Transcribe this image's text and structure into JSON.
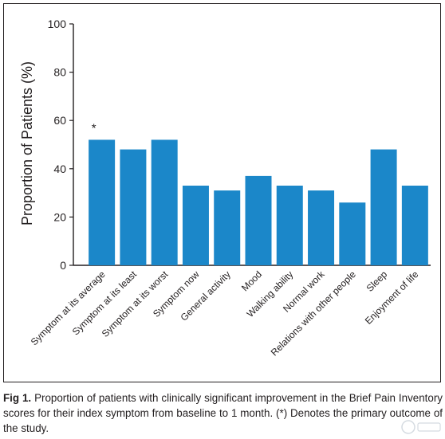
{
  "chart_data": {
    "type": "bar",
    "title": "",
    "ylabel": "Proportion of Patients (%)",
    "xlabel": "",
    "ylim": [
      0,
      100
    ],
    "yticks": [
      0,
      20,
      40,
      60,
      80,
      100
    ],
    "ytick_labels": [
      "0",
      "20",
      "40",
      "60",
      "80",
      "100"
    ],
    "categories": [
      "Symptom at its average",
      "Symptom at its least",
      "Symptom at its worst",
      "Symptom now",
      "General activity",
      "Mood",
      "Walking ability",
      "Normal work",
      "Relations with other people",
      "Sleep",
      "Enjoyment of life"
    ],
    "values": [
      52,
      48,
      52,
      33,
      31,
      37,
      33,
      31,
      26,
      48,
      33
    ],
    "annotations": [
      {
        "category": "Symptom at its average",
        "text": "*"
      }
    ],
    "bar_color": "#1b87c9",
    "grid": false
  },
  "caption": {
    "label": "Fig 1.",
    "text": "Proportion of patients with clinically significant improvement in the Brief Pain Inventory scores for their index symptom from baseline to 1 month. (*) Denotes the primary outcome of the study."
  }
}
